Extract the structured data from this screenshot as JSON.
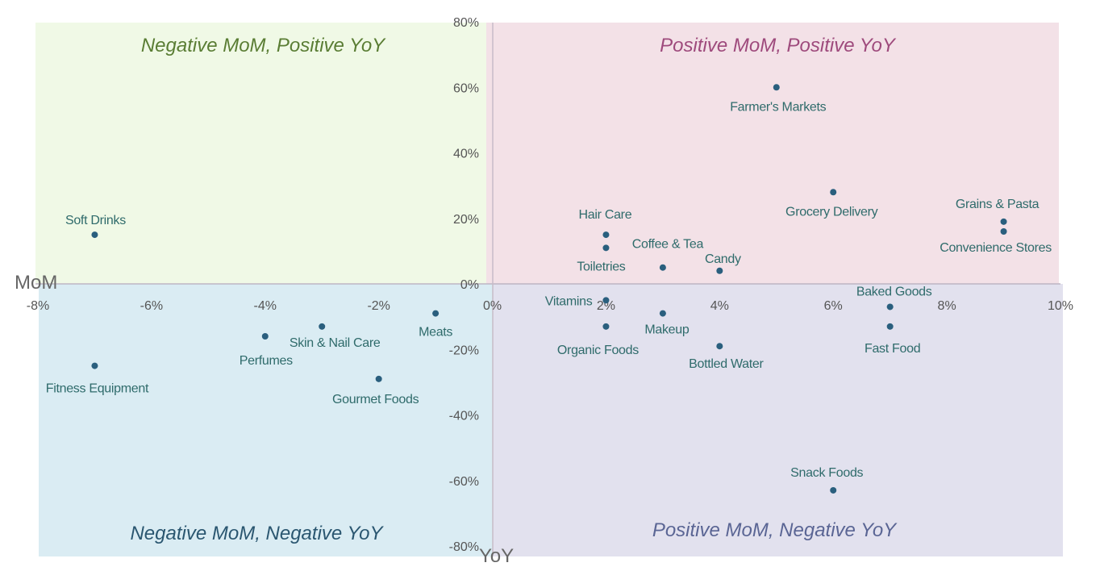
{
  "chart_data": {
    "type": "scatter",
    "xlabel": "YoY",
    "ylabel": "MoM",
    "xlim": [
      -8,
      10
    ],
    "ylim": [
      -80,
      80
    ],
    "x_ticks": [
      "-8%",
      "-6%",
      "-4%",
      "-2%",
      "0%",
      "2%",
      "4%",
      "6%",
      "8%",
      "10%"
    ],
    "y_ticks": [
      "80%",
      "60%",
      "40%",
      "20%",
      "0%",
      "-20%",
      "-40%",
      "-60%",
      "-80%"
    ],
    "x_tick_values": [
      -8,
      -6,
      -4,
      -2,
      0,
      2,
      4,
      6,
      8,
      10
    ],
    "y_tick_values": [
      80,
      60,
      40,
      20,
      0,
      -20,
      -40,
      -60,
      -80
    ],
    "point_color": "#2a5f7e",
    "quadrants": [
      {
        "name": "top-left",
        "title": "Negative MoM, Positive YoY",
        "fill": "#f0f9e6",
        "color": "#5a7d34"
      },
      {
        "name": "top-right",
        "title": "Positive MoM, Positive YoY",
        "fill": "#f3e1e7",
        "color": "#9e4a7c"
      },
      {
        "name": "bottom-left",
        "title": "Negative MoM, Negative YoY",
        "fill": "#daecf3",
        "color": "#2a5670"
      },
      {
        "name": "bottom-right",
        "title": "Positive MoM, Negative YoY",
        "fill": "#e2e1ee",
        "color": "#5a6594"
      }
    ],
    "points": [
      {
        "label": "Soft Drinks",
        "x": -7,
        "y": 15
      },
      {
        "label": "Farmer's Markets",
        "x": 5,
        "y": 60
      },
      {
        "label": "Grocery Delivery",
        "x": 6,
        "y": 28
      },
      {
        "label": "Grains & Pasta",
        "x": 9,
        "y": 19
      },
      {
        "label": "Convenience Stores",
        "x": 9,
        "y": 16
      },
      {
        "label": "Hair Care",
        "x": 2,
        "y": 15
      },
      {
        "label": "Toiletries",
        "x": 2,
        "y": 11
      },
      {
        "label": "Coffee & Tea",
        "x": 3,
        "y": 5
      },
      {
        "label": "Candy",
        "x": 4,
        "y": 4
      },
      {
        "label": "Vitamins",
        "x": 2,
        "y": -5
      },
      {
        "label": "Makeup",
        "x": 3,
        "y": -9
      },
      {
        "label": "Organic Foods",
        "x": 2,
        "y": -13
      },
      {
        "label": "Bottled Water",
        "x": 4,
        "y": -19
      },
      {
        "label": "Baked Goods",
        "x": 7,
        "y": -7
      },
      {
        "label": "Fast Food",
        "x": 7,
        "y": -13
      },
      {
        "label": "Snack Foods",
        "x": 6,
        "y": -63
      },
      {
        "label": "Meats",
        "x": -1,
        "y": -9
      },
      {
        "label": "Skin & Nail Care",
        "x": -3,
        "y": -13
      },
      {
        "label": "Perfumes",
        "x": -4,
        "y": -16
      },
      {
        "label": "Gourmet Foods",
        "x": -2,
        "y": -29
      },
      {
        "label": "Fitness Equipment",
        "x": -7,
        "y": -25
      }
    ]
  }
}
